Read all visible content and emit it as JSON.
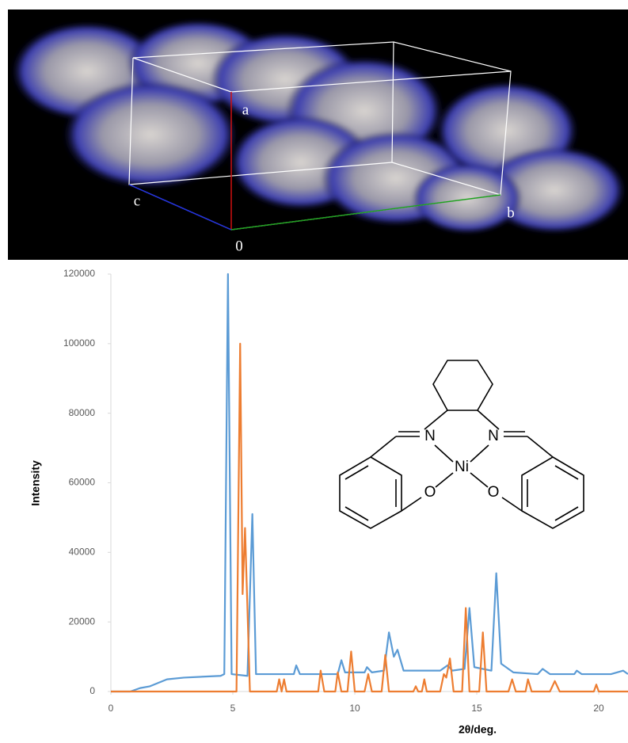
{
  "image": {
    "labels": [
      "a",
      "b",
      "c",
      "0"
    ]
  },
  "chart_data": {
    "type": "line",
    "xlabel": "2θ/deg.",
    "ylabel": "Intensity",
    "xlim": [
      0,
      21.2
    ],
    "ylim": [
      0,
      120000
    ],
    "xticks": [
      0,
      5,
      10,
      15,
      20
    ],
    "yticks": [
      0,
      20000,
      40000,
      60000,
      80000,
      100000,
      120000
    ],
    "annotations": [
      "N",
      "N",
      "Ni",
      "O",
      "O"
    ],
    "series": [
      {
        "color": "#5b9bd5",
        "x": [
          0,
          0.8,
          1.2,
          1.6,
          2.3,
          3,
          4.5,
          4.65,
          4.8,
          4.95,
          5.6,
          5.8,
          5.95,
          7.5,
          7.6,
          7.75,
          9.3,
          9.45,
          9.6,
          10.4,
          10.5,
          10.7,
          11.2,
          11.4,
          11.6,
          11.75,
          12,
          13.5,
          13.8,
          14,
          14.5,
          14.7,
          14.9,
          15.6,
          15.8,
          16,
          16.5,
          17.5,
          17.7,
          18,
          19,
          19.1,
          19.3,
          20.5,
          21,
          21.2
        ],
        "values": [
          0,
          0,
          1000,
          1500,
          3500,
          4000,
          4500,
          5000,
          120000,
          5000,
          4500,
          51000,
          5000,
          5000,
          7500,
          5000,
          5000,
          9000,
          5500,
          5500,
          7000,
          5500,
          6000,
          17000,
          10000,
          12000,
          6000,
          6000,
          7500,
          6000,
          6500,
          24000,
          7000,
          6000,
          34000,
          8000,
          5500,
          5000,
          6500,
          5000,
          5000,
          6000,
          5000,
          5000,
          6000,
          5000
        ]
      },
      {
        "color": "#ed7d31",
        "x": [
          0,
          5.15,
          5.3,
          5.4,
          5.5,
          5.7,
          6.8,
          6.9,
          7.0,
          7.1,
          7.2,
          8.5,
          8.6,
          8.75,
          9.2,
          9.3,
          9.45,
          9.7,
          9.85,
          10,
          10.4,
          10.55,
          10.7,
          11.1,
          11.25,
          11.4,
          12.4,
          12.5,
          12.6,
          12.75,
          12.85,
          12.95,
          13.5,
          13.65,
          13.75,
          13.9,
          14.05,
          14.4,
          14.55,
          14.7,
          15.1,
          15.25,
          15.4,
          16.3,
          16.45,
          16.6,
          17,
          17.1,
          17.25,
          18,
          18.2,
          18.4,
          19.8,
          19.9,
          20,
          21.2
        ],
        "values": [
          0,
          0,
          100000,
          28000,
          47000,
          0,
          0,
          3500,
          0,
          3500,
          0,
          0,
          6000,
          0,
          0,
          5500,
          0,
          0,
          11500,
          0,
          0,
          5000,
          0,
          0,
          10500,
          0,
          0,
          1500,
          0,
          0,
          3500,
          0,
          0,
          5000,
          4000,
          9500,
          0,
          0,
          24000,
          0,
          0,
          17000,
          0,
          0,
          3500,
          0,
          0,
          3500,
          0,
          0,
          3000,
          0,
          0,
          2000,
          0,
          0
        ]
      }
    ]
  }
}
